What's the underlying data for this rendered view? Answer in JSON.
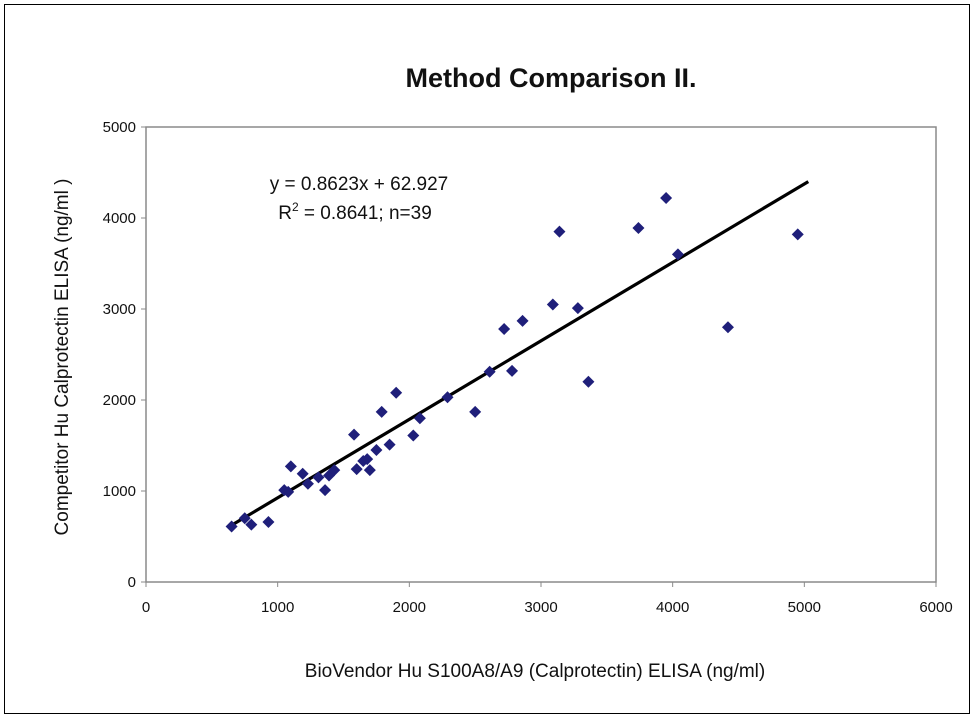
{
  "chart_data": {
    "type": "scatter",
    "title": "Method Comparison II.",
    "xlabel": "BioVendor Hu S100A8/A9 (Calprotectin) ELISA (ng/ml)",
    "ylabel": "Competitor Hu Calprotectin ELISA (ng/ml )",
    "xlim": [
      0,
      6000
    ],
    "ylim": [
      0,
      5000
    ],
    "x_ticks": [
      "0",
      "1000",
      "2000",
      "3000",
      "4000",
      "5000",
      "6000"
    ],
    "y_ticks": [
      "0",
      "1000",
      "2000",
      "3000",
      "4000",
      "5000"
    ],
    "grid": false,
    "legend": "none",
    "marker_color": "#1f1f7a",
    "line_color": "#000000",
    "annotations": {
      "equation": "y = 0.8623x + 62.927",
      "r_squared_prefix": "R",
      "r_squared_sup": "2",
      "r_squared_rest": " = 0.8641; n=39"
    },
    "trendline": {
      "slope": 0.8623,
      "intercept": 62.927,
      "x_range": [
        650,
        5030
      ]
    },
    "series": [
      {
        "points": [
          [
            650,
            610
          ],
          [
            750,
            700
          ],
          [
            800,
            630
          ],
          [
            930,
            660
          ],
          [
            1050,
            1010
          ],
          [
            1080,
            990
          ],
          [
            1100,
            1270
          ],
          [
            1190,
            1190
          ],
          [
            1230,
            1080
          ],
          [
            1310,
            1150
          ],
          [
            1360,
            1010
          ],
          [
            1390,
            1170
          ],
          [
            1430,
            1230
          ],
          [
            1580,
            1620
          ],
          [
            1600,
            1240
          ],
          [
            1650,
            1330
          ],
          [
            1680,
            1350
          ],
          [
            1700,
            1230
          ],
          [
            1750,
            1450
          ],
          [
            1790,
            1870
          ],
          [
            1850,
            1510
          ],
          [
            1900,
            2080
          ],
          [
            2030,
            1610
          ],
          [
            2080,
            1800
          ],
          [
            2290,
            2030
          ],
          [
            2500,
            1870
          ],
          [
            2610,
            2310
          ],
          [
            2720,
            2780
          ],
          [
            2780,
            2320
          ],
          [
            2860,
            2870
          ],
          [
            3090,
            3050
          ],
          [
            3140,
            3850
          ],
          [
            3280,
            3010
          ],
          [
            3360,
            2200
          ],
          [
            3740,
            3890
          ],
          [
            3950,
            4220
          ],
          [
            4040,
            3600
          ],
          [
            4420,
            2800
          ],
          [
            4950,
            3820
          ]
        ]
      }
    ]
  }
}
